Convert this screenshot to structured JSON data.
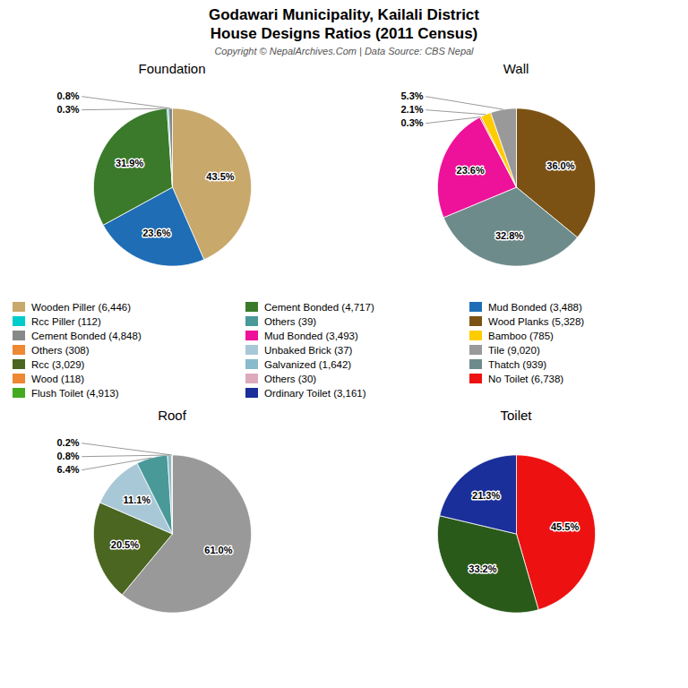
{
  "title": "Godawari Municipality, Kailali District\nHouse Designs Ratios (2011 Census)",
  "subtitle": "Copyright © NepalArchives.Com | Data Source: CBS Nepal",
  "chart_data": [
    {
      "type": "pie",
      "title": "Foundation",
      "values": [
        43.5,
        23.6,
        31.9,
        0.3,
        0.8
      ],
      "value_labels": [
        "43.5%",
        "23.6%",
        "31.9%",
        "0.3%",
        "0.8%"
      ],
      "colors": [
        "#c8a86b",
        "#1e6db5",
        "#3a7a2a",
        "#00cccc",
        "#888888"
      ],
      "data_labels": true
    },
    {
      "type": "pie",
      "title": "Wall",
      "values": [
        36.0,
        32.8,
        23.6,
        0.3,
        2.1,
        5.3
      ],
      "value_labels": [
        "36.0%",
        "32.8%",
        "23.6%",
        "0.3%",
        "2.1%",
        "5.3%"
      ],
      "colors": [
        "#7b5213",
        "#6e8b8b",
        "#ee1199",
        "#dd6622",
        "#ffcc00",
        "#999999"
      ],
      "data_labels": true
    },
    {
      "type": "pie",
      "title": "Roof",
      "values": [
        61.0,
        20.5,
        11.1,
        6.4,
        0.8,
        0.2
      ],
      "value_labels": [
        "61.0%",
        "20.5%",
        "11.1%",
        "6.4%",
        "0.8%",
        "0.2%"
      ],
      "colors": [
        "#999999",
        "#4a6620",
        "#a8c8d8",
        "#4a9999",
        "#88bbcc",
        "#ee8833"
      ],
      "data_labels": true
    },
    {
      "type": "pie",
      "title": "Toilet",
      "values": [
        45.5,
        33.2,
        21.3
      ],
      "value_labels": [
        "45.5%",
        "33.2%",
        "21.3%"
      ],
      "colors": [
        "#ee1111",
        "#2a5a1a",
        "#1a2f99"
      ],
      "data_labels": true
    }
  ],
  "legend_items": [
    {
      "label": "Wooden Piller (6,446)",
      "color": "#c8a86b"
    },
    {
      "label": "Rcc Piller (112)",
      "color": "#00cccc"
    },
    {
      "label": "Cement Bonded (4,848)",
      "color": "#888888"
    },
    {
      "label": "Others (308)",
      "color": "#ee8833"
    },
    {
      "label": "Rcc (3,029)",
      "color": "#4a6620"
    },
    {
      "label": "Wood (118)",
      "color": "#ee8833"
    },
    {
      "label": "Flush Toilet (4,913)",
      "color": "#44aa22"
    },
    {
      "label": "Cement Bonded (4,717)",
      "color": "#3a7a2a"
    },
    {
      "label": "Others (39)",
      "color": "#4a9999"
    },
    {
      "label": "Mud Bonded (3,493)",
      "color": "#ee1199"
    },
    {
      "label": "Unbaked Brick (37)",
      "color": "#a8c8d8"
    },
    {
      "label": "Galvanized (1,642)",
      "color": "#88bbcc"
    },
    {
      "label": "Others (30)",
      "color": "#ddaabb"
    },
    {
      "label": "Ordinary Toilet (3,161)",
      "color": "#1a2f99"
    },
    {
      "label": "Mud Bonded (3,488)",
      "color": "#1e6db5"
    },
    {
      "label": "Wood Planks (5,328)",
      "color": "#7b5213"
    },
    {
      "label": "Bamboo (785)",
      "color": "#ffcc00"
    },
    {
      "label": "Tile (9,020)",
      "color": "#999999"
    },
    {
      "label": "Thatch (939)",
      "color": "#6e8b8b"
    },
    {
      "label": "No Toilet (6,738)",
      "color": "#ee1111"
    }
  ]
}
